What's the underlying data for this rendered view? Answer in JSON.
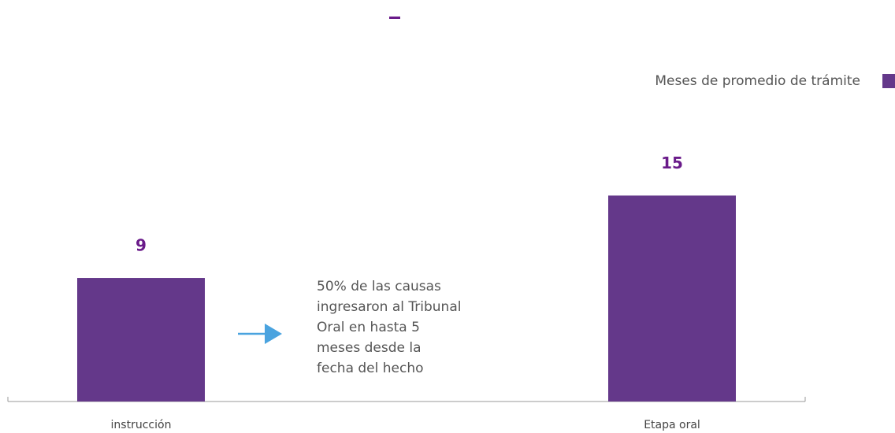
{
  "chart_data": {
    "type": "bar",
    "categories": [
      "instrucción",
      "Etapa oral"
    ],
    "series": [
      {
        "name": "Meses de promedio de trámite",
        "color": "#64388a",
        "values": [
          9,
          15
        ]
      }
    ],
    "ylim": [
      0,
      25
    ],
    "annotation": [
      "50% de las causas",
      "ingresaron al Tribunal",
      "Oral en hasta 5",
      "meses desde la",
      "fecha del hecho"
    ]
  }
}
